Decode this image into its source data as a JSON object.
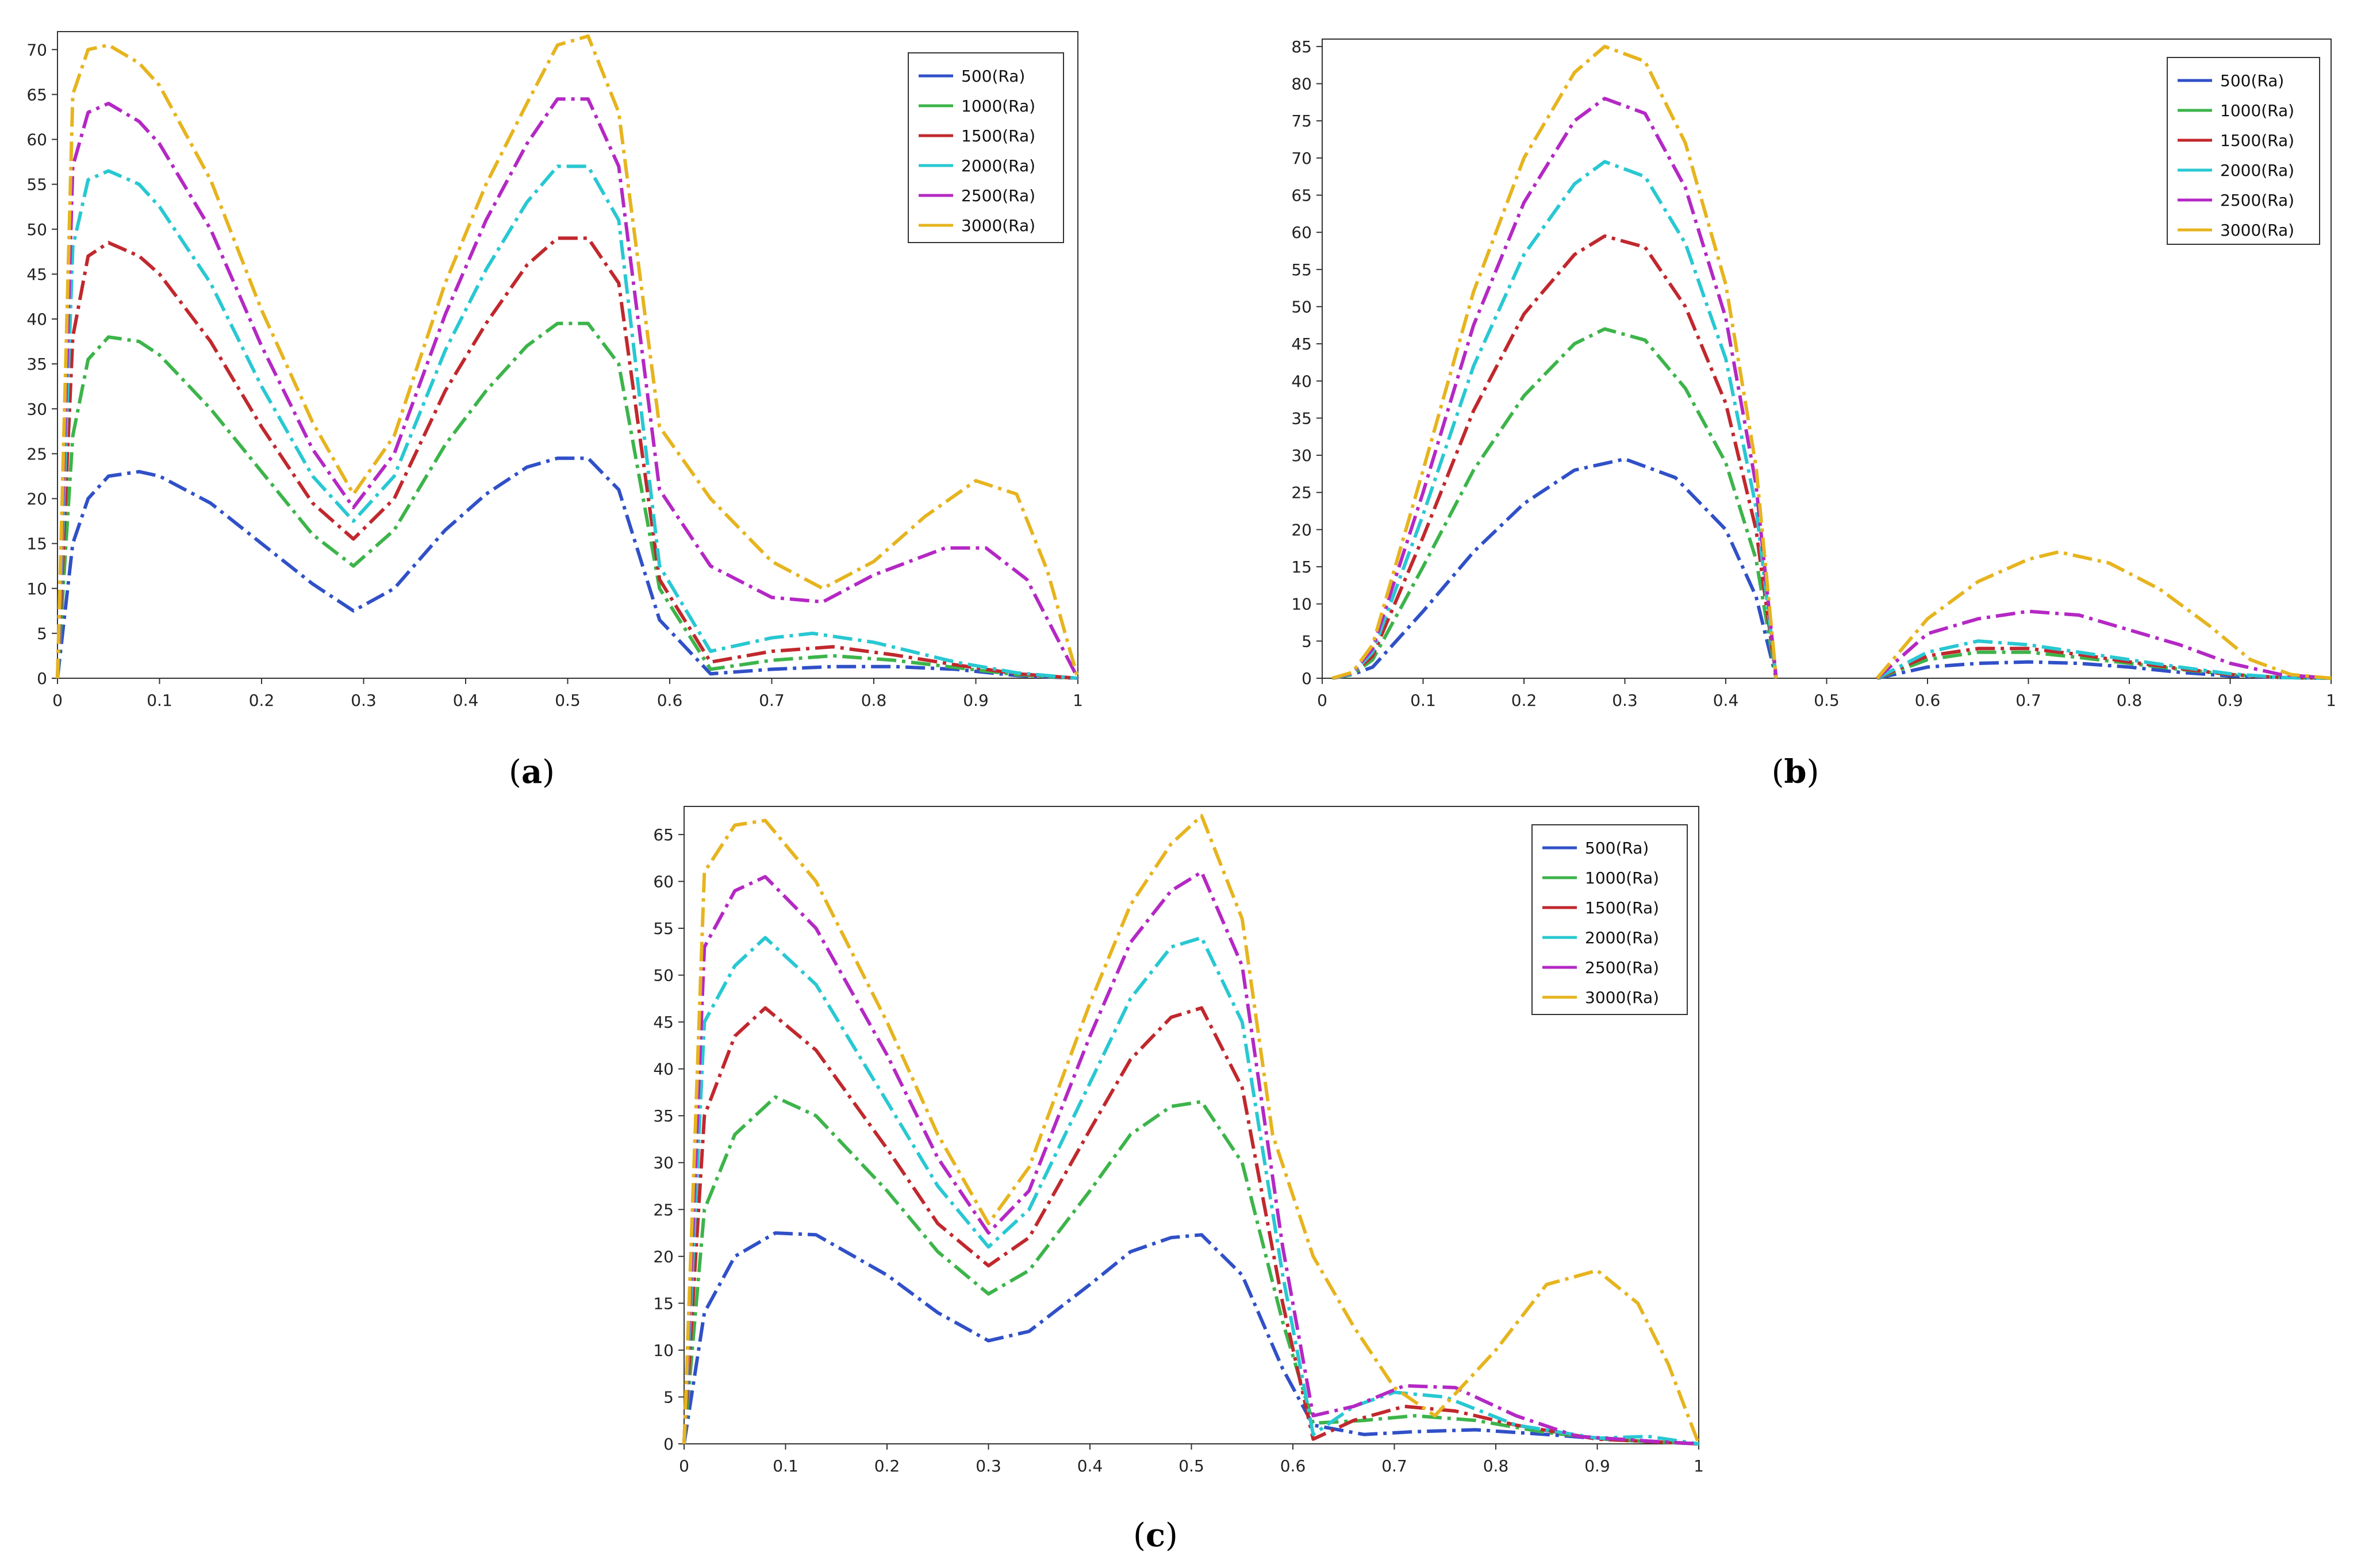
{
  "colors": {
    "500(Ra)": "#3050c8",
    "1000(Ra)": "#3cb44a",
    "1500(Ra)": "#c0282d",
    "2000(Ra)": "#28c8d2",
    "2500(Ra)": "#b428c4",
    "3000(Ra)": "#e6b41e"
  },
  "chart_data": [
    {
      "type": "line",
      "title": "",
      "caption": "a",
      "xlabel": "",
      "ylabel": "",
      "xlim": [
        0,
        1
      ],
      "ylim": [
        0,
        72
      ],
      "xticks": [
        "0",
        "0.1",
        "0.2",
        "0.3",
        "0.4",
        "0.5",
        "0.6",
        "0.7",
        "0.8",
        "0.9",
        "1"
      ],
      "yticks": [
        "0",
        "5",
        "10",
        "15",
        "20",
        "25",
        "30",
        "35",
        "40",
        "45",
        "50",
        "55",
        "60",
        "65",
        "70"
      ],
      "legend": [
        "500(Ra)",
        "1000(Ra)",
        "1500(Ra)",
        "2000(Ra)",
        "2500(Ra)",
        "3000(Ra)"
      ],
      "legend_position": "top-right",
      "series": [
        {
          "name": "500(Ra)",
          "x": [
            0,
            0.015,
            0.03,
            0.05,
            0.08,
            0.1,
            0.15,
            0.2,
            0.25,
            0.29,
            0.33,
            0.38,
            0.42,
            0.46,
            0.49,
            0.52,
            0.55,
            0.59,
            0.64,
            0.7,
            0.76,
            0.82,
            0.88,
            0.94,
            1
          ],
          "y": [
            0,
            15,
            20,
            22.5,
            23,
            22.5,
            19.5,
            15,
            10.5,
            7.5,
            10,
            16.5,
            20.5,
            23.5,
            24.5,
            24.5,
            21,
            6.5,
            0.5,
            1,
            1.3,
            1.3,
            1,
            0.3,
            0
          ]
        },
        {
          "name": "1000(Ra)",
          "x": [
            0,
            0.015,
            0.03,
            0.05,
            0.08,
            0.1,
            0.15,
            0.2,
            0.25,
            0.29,
            0.33,
            0.38,
            0.42,
            0.46,
            0.49,
            0.52,
            0.55,
            0.59,
            0.64,
            0.7,
            0.76,
            0.82,
            0.88,
            0.94,
            1
          ],
          "y": [
            0,
            27,
            35.5,
            38,
            37.5,
            36,
            30,
            23,
            16,
            12.5,
            16.5,
            26,
            32,
            37,
            39.5,
            39.5,
            35,
            10,
            1,
            2,
            2.5,
            2,
            1.2,
            0.4,
            0
          ]
        },
        {
          "name": "1500(Ra)",
          "x": [
            0,
            0.015,
            0.03,
            0.05,
            0.08,
            0.1,
            0.15,
            0.2,
            0.25,
            0.29,
            0.33,
            0.38,
            0.42,
            0.46,
            0.49,
            0.52,
            0.55,
            0.59,
            0.64,
            0.7,
            0.76,
            0.82,
            0.88,
            0.94,
            1
          ],
          "y": [
            0,
            38,
            47,
            48.5,
            47,
            45,
            37.5,
            28,
            19.5,
            15.5,
            20,
            32,
            39.5,
            46,
            49,
            49,
            44,
            11,
            1.8,
            3,
            3.5,
            2.6,
            1.5,
            0.5,
            0
          ]
        },
        {
          "name": "2000(Ra)",
          "x": [
            0,
            0.015,
            0.03,
            0.05,
            0.08,
            0.1,
            0.15,
            0.2,
            0.25,
            0.29,
            0.33,
            0.38,
            0.42,
            0.46,
            0.49,
            0.52,
            0.55,
            0.59,
            0.64,
            0.7,
            0.74,
            0.8,
            0.88,
            0.94,
            1
          ],
          "y": [
            0,
            48,
            55.5,
            56.5,
            55,
            52.5,
            44,
            32.5,
            22.5,
            17.5,
            22.5,
            36.5,
            45.5,
            53,
            57,
            57,
            51,
            12.5,
            3,
            4.5,
            5,
            4,
            1.8,
            0.6,
            0
          ]
        },
        {
          "name": "2500(Ra)",
          "x": [
            0,
            0.015,
            0.03,
            0.05,
            0.08,
            0.1,
            0.15,
            0.2,
            0.25,
            0.29,
            0.33,
            0.38,
            0.42,
            0.46,
            0.49,
            0.52,
            0.55,
            0.59,
            0.64,
            0.7,
            0.75,
            0.8,
            0.87,
            0.91,
            0.95,
            1
          ],
          "y": [
            0,
            57,
            63,
            64,
            62,
            59.5,
            50,
            37,
            25.5,
            19,
            25,
            40.5,
            51,
            59.5,
            64.5,
            64.5,
            57,
            21,
            12.5,
            9,
            8.5,
            11.5,
            14.5,
            14.5,
            11,
            0
          ]
        },
        {
          "name": "3000(Ra)",
          "x": [
            0,
            0.015,
            0.03,
            0.05,
            0.08,
            0.1,
            0.15,
            0.2,
            0.25,
            0.29,
            0.33,
            0.38,
            0.42,
            0.46,
            0.49,
            0.52,
            0.55,
            0.59,
            0.64,
            0.7,
            0.75,
            0.8,
            0.85,
            0.9,
            0.94,
            0.97,
            1
          ],
          "y": [
            0,
            65,
            70,
            70.5,
            68.5,
            66,
            55.5,
            41,
            28.5,
            20.5,
            27,
            44,
            55,
            64,
            70.5,
            71.5,
            63,
            28,
            20,
            13,
            10,
            13,
            18,
            22,
            20.5,
            12,
            0
          ]
        }
      ]
    },
    {
      "type": "line",
      "title": "",
      "caption": "b",
      "xlabel": "",
      "ylabel": "",
      "xlim": [
        0,
        1
      ],
      "ylim": [
        0,
        86
      ],
      "xticks": [
        "0",
        "0.1",
        "0.2",
        "0.3",
        "0.4",
        "0.5",
        "0.6",
        "0.7",
        "0.8",
        "0.9",
        "1"
      ],
      "yticks": [
        "0",
        "5",
        "10",
        "15",
        "20",
        "25",
        "30",
        "35",
        "40",
        "45",
        "50",
        "55",
        "60",
        "65",
        "70",
        "75",
        "80",
        "85"
      ],
      "legend": [
        "500(Ra)",
        "1000(Ra)",
        "1500(Ra)",
        "2000(Ra)",
        "2500(Ra)",
        "3000(Ra)"
      ],
      "legend_position": "top-right",
      "series": [
        {
          "name": "500(Ra)",
          "x": [
            0.01,
            0.03,
            0.05,
            0.1,
            0.15,
            0.2,
            0.25,
            0.3,
            0.35,
            0.4,
            0.43,
            0.45,
            null,
            0.55,
            0.6,
            0.65,
            0.7,
            0.75,
            0.8,
            0.85,
            0.9,
            0.95,
            1
          ],
          "y": [
            0,
            0.5,
            1.5,
            9,
            17,
            23.5,
            28,
            29.5,
            27,
            20,
            11,
            0,
            null,
            0,
            1.5,
            2,
            2.2,
            2,
            1.5,
            0.8,
            0.3,
            0.1,
            0
          ]
        },
        {
          "name": "1000(Ra)",
          "x": [
            0.01,
            0.03,
            0.05,
            0.1,
            0.15,
            0.2,
            0.25,
            0.28,
            0.32,
            0.36,
            0.4,
            0.43,
            0.45,
            null,
            0.55,
            0.6,
            0.65,
            0.7,
            0.75,
            0.8,
            0.85,
            0.9,
            0.95,
            1
          ],
          "y": [
            0,
            0.5,
            2.5,
            15,
            28,
            38,
            45,
            47,
            45.5,
            39,
            29,
            16,
            0,
            null,
            0,
            2.5,
            3.5,
            3.5,
            2.8,
            2,
            1.2,
            0.5,
            0.1,
            0
          ]
        },
        {
          "name": "1500(Ra)",
          "x": [
            0.01,
            0.03,
            0.05,
            0.1,
            0.15,
            0.2,
            0.25,
            0.28,
            0.32,
            0.36,
            0.4,
            0.43,
            0.45,
            null,
            0.55,
            0.6,
            0.65,
            0.7,
            0.75,
            0.8,
            0.85,
            0.9,
            0.95,
            1
          ],
          "y": [
            0,
            0.6,
            3,
            19,
            36,
            49,
            57,
            59.5,
            58,
            50,
            37,
            20,
            0,
            null,
            0,
            3,
            4,
            4,
            3.2,
            2.2,
            1.3,
            0.5,
            0.1,
            0
          ]
        },
        {
          "name": "2000(Ra)",
          "x": [
            0.01,
            0.03,
            0.05,
            0.1,
            0.15,
            0.2,
            0.25,
            0.28,
            0.32,
            0.36,
            0.4,
            0.43,
            0.45,
            null,
            0.55,
            0.6,
            0.65,
            0.7,
            0.75,
            0.8,
            0.85,
            0.9,
            0.95,
            1
          ],
          "y": [
            0,
            0.6,
            3.5,
            22,
            42,
            57,
            66.5,
            69.5,
            67.5,
            58.5,
            43,
            23,
            0,
            null,
            0,
            3.5,
            5,
            4.5,
            3.5,
            2.5,
            1.5,
            0.6,
            0.1,
            0
          ]
        },
        {
          "name": "2500(Ra)",
          "x": [
            0.01,
            0.03,
            0.05,
            0.1,
            0.15,
            0.2,
            0.25,
            0.28,
            0.32,
            0.36,
            0.4,
            0.43,
            0.45,
            null,
            0.55,
            0.6,
            0.65,
            0.7,
            0.75,
            0.8,
            0.85,
            0.9,
            0.95,
            1
          ],
          "y": [
            0,
            0.7,
            4,
            25,
            47.5,
            64,
            75,
            78,
            76,
            66,
            48.5,
            26,
            0,
            null,
            0,
            6,
            8,
            9,
            8.5,
            6.5,
            4.5,
            2,
            0.5,
            0
          ]
        },
        {
          "name": "3000(Ra)",
          "x": [
            0.01,
            0.03,
            0.05,
            0.1,
            0.15,
            0.2,
            0.25,
            0.28,
            0.32,
            0.36,
            0.4,
            0.43,
            0.45,
            null,
            0.55,
            0.6,
            0.65,
            0.7,
            0.73,
            0.78,
            0.83,
            0.88,
            0.92,
            0.96,
            1
          ],
          "y": [
            0,
            0.8,
            4.5,
            28,
            52,
            70,
            81.5,
            85,
            83,
            72,
            53,
            28.5,
            0,
            null,
            0,
            8,
            13,
            16,
            17,
            15.5,
            12,
            7,
            2.5,
            0.5,
            0
          ]
        }
      ]
    },
    {
      "type": "line",
      "title": "",
      "caption": "c",
      "xlabel": "",
      "ylabel": "",
      "xlim": [
        0,
        1
      ],
      "ylim": [
        0,
        68
      ],
      "xticks": [
        "0",
        "0.1",
        "0.2",
        "0.3",
        "0.4",
        "0.5",
        "0.6",
        "0.7",
        "0.8",
        "0.9",
        "1"
      ],
      "yticks": [
        "0",
        "5",
        "10",
        "15",
        "20",
        "25",
        "30",
        "35",
        "40",
        "45",
        "50",
        "55",
        "60",
        "65"
      ],
      "legend": [
        "500(Ra)",
        "1000(Ra)",
        "1500(Ra)",
        "2000(Ra)",
        "2500(Ra)",
        "3000(Ra)"
      ],
      "legend_position": "top-right",
      "series": [
        {
          "name": "500(Ra)",
          "x": [
            0,
            0.02,
            0.05,
            0.09,
            0.13,
            0.2,
            0.25,
            0.3,
            0.34,
            0.4,
            0.44,
            0.48,
            0.51,
            0.55,
            0.59,
            0.62,
            0.67,
            0.72,
            0.78,
            0.85,
            0.92,
            1
          ],
          "y": [
            0,
            14,
            20,
            22.5,
            22.3,
            18,
            14,
            11,
            12,
            17,
            20.5,
            22,
            22.3,
            18,
            8,
            2,
            1,
            1.3,
            1.5,
            1,
            0.4,
            0
          ]
        },
        {
          "name": "1000(Ra)",
          "x": [
            0,
            0.02,
            0.05,
            0.09,
            0.13,
            0.2,
            0.25,
            0.3,
            0.34,
            0.4,
            0.44,
            0.48,
            0.51,
            0.55,
            0.59,
            0.62,
            0.67,
            0.72,
            0.78,
            0.85,
            0.92,
            1
          ],
          "y": [
            0,
            25,
            33,
            37,
            35,
            27,
            20.5,
            16,
            18.5,
            27,
            33,
            36,
            36.5,
            30,
            13,
            2.2,
            2.5,
            3,
            2.5,
            1.2,
            0.4,
            0
          ]
        },
        {
          "name": "1500(Ra)",
          "x": [
            0,
            0.02,
            0.05,
            0.08,
            0.13,
            0.2,
            0.25,
            0.3,
            0.34,
            0.4,
            0.44,
            0.48,
            0.51,
            0.55,
            0.59,
            0.62,
            0.66,
            0.71,
            0.76,
            0.82,
            0.9,
            1
          ],
          "y": [
            0,
            35,
            43.5,
            46.5,
            42,
            31.5,
            23.5,
            19,
            22,
            33.5,
            41,
            45.5,
            46.5,
            38,
            15,
            0.5,
            2.5,
            4,
            3.5,
            2,
            0.5,
            0
          ]
        },
        {
          "name": "2000(Ra)",
          "x": [
            0,
            0.02,
            0.05,
            0.08,
            0.13,
            0.2,
            0.25,
            0.3,
            0.34,
            0.4,
            0.44,
            0.48,
            0.51,
            0.55,
            0.59,
            0.62,
            0.66,
            0.7,
            0.75,
            0.82,
            0.9,
            0.95,
            1
          ],
          "y": [
            0,
            45,
            51,
            54,
            49,
            36.5,
            27.5,
            21,
            25,
            38.5,
            47.5,
            53,
            54,
            45,
            18,
            1,
            4,
            5.5,
            5,
            2,
            0.6,
            0.8,
            0
          ]
        },
        {
          "name": "2500(Ra)",
          "x": [
            0,
            0.02,
            0.05,
            0.08,
            0.13,
            0.2,
            0.25,
            0.3,
            0.34,
            0.4,
            0.44,
            0.48,
            0.51,
            0.55,
            0.59,
            0.62,
            0.66,
            0.71,
            0.76,
            0.82,
            0.88,
            0.95,
            1
          ],
          "y": [
            0,
            53,
            59,
            60.5,
            55,
            41.5,
            30.5,
            22.5,
            27,
            43.5,
            53.5,
            59,
            61,
            51,
            21,
            3,
            4,
            6.2,
            6,
            3,
            0.8,
            0.3,
            0
          ]
        },
        {
          "name": "3000(Ra)",
          "x": [
            0,
            0.02,
            0.05,
            0.08,
            0.13,
            0.2,
            0.25,
            0.3,
            0.34,
            0.4,
            0.44,
            0.48,
            0.51,
            0.55,
            0.58,
            0.62,
            0.66,
            0.7,
            0.74,
            0.8,
            0.85,
            0.9,
            0.94,
            0.97,
            1
          ],
          "y": [
            0,
            61,
            66,
            66.5,
            60,
            45,
            33,
            23.5,
            29.5,
            47,
            57.5,
            64,
            67,
            56,
            33,
            20,
            12.5,
            6,
            3,
            10,
            17,
            18.5,
            15,
            8.5,
            0
          ]
        }
      ]
    }
  ]
}
